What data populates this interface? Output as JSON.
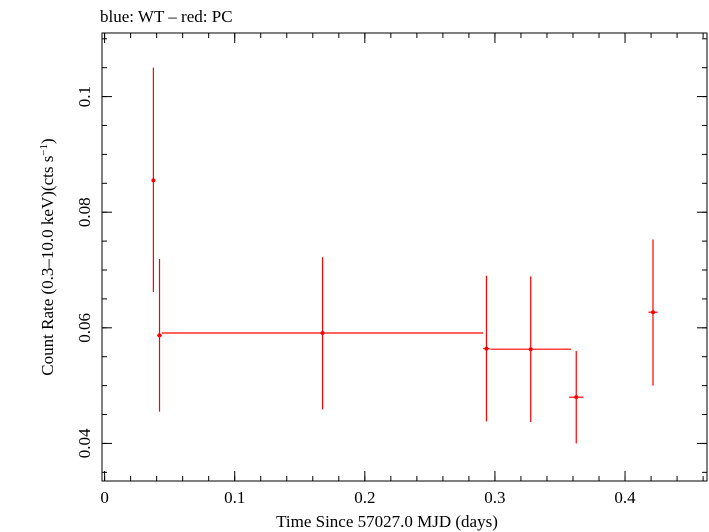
{
  "chart_data": {
    "type": "scatter",
    "title": "blue: WT – red: PC",
    "xlabel": "Time Since 57027.0 MJD (days)",
    "ylabel_main": "Count Rate (0.3–10.0 keV)(cts s",
    "ylabel_sup": "−1",
    "ylabel_close": ")",
    "xlim": [
      -0.002,
      0.463
    ],
    "ylim": [
      0.0335,
      0.111
    ],
    "x_ticks": [
      {
        "value": 0,
        "label": "0"
      },
      {
        "value": 0.1,
        "label": "0.1"
      },
      {
        "value": 0.2,
        "label": "0.2"
      },
      {
        "value": 0.3,
        "label": "0.3"
      },
      {
        "value": 0.4,
        "label": "0.4"
      }
    ],
    "y_ticks": [
      {
        "value": 0.04,
        "label": "0.04"
      },
      {
        "value": 0.06,
        "label": "0.06"
      },
      {
        "value": 0.08,
        "label": "0.08"
      },
      {
        "value": 0.1,
        "label": "0.1"
      }
    ],
    "x_minor_step": 0.02,
    "y_minor_step": 0.005,
    "series": [
      {
        "color": "#ff0000",
        "points": [
          {
            "x": 0.0375,
            "xerr_lo": 0.0005,
            "xerr_hi": 0.0005,
            "y": 0.0855,
            "y_lo": 0.0662,
            "y_hi": 0.105
          },
          {
            "x": 0.0422,
            "xerr_lo": 0.0018,
            "xerr_hi": 0.0018,
            "y": 0.0587,
            "y_lo": 0.0455,
            "y_hi": 0.0719
          },
          {
            "x": 0.1675,
            "xerr_lo": 0.1235,
            "xerr_hi": 0.1235,
            "y": 0.0591,
            "y_lo": 0.0459,
            "y_hi": 0.0722
          },
          {
            "x": 0.2935,
            "xerr_lo": 0.0025,
            "xerr_hi": 0.0025,
            "y": 0.0564,
            "y_lo": 0.0438,
            "y_hi": 0.069
          },
          {
            "x": 0.3275,
            "xerr_lo": 0.031,
            "xerr_hi": 0.031,
            "y": 0.0563,
            "y_lo": 0.0437,
            "y_hi": 0.0689
          },
          {
            "x": 0.3625,
            "xerr_lo": 0.0055,
            "xerr_hi": 0.0055,
            "y": 0.048,
            "y_lo": 0.04,
            "y_hi": 0.056
          },
          {
            "x": 0.4215,
            "xerr_lo": 0.0035,
            "xerr_hi": 0.0035,
            "y": 0.0627,
            "y_lo": 0.05,
            "y_hi": 0.0753
          }
        ]
      }
    ]
  }
}
